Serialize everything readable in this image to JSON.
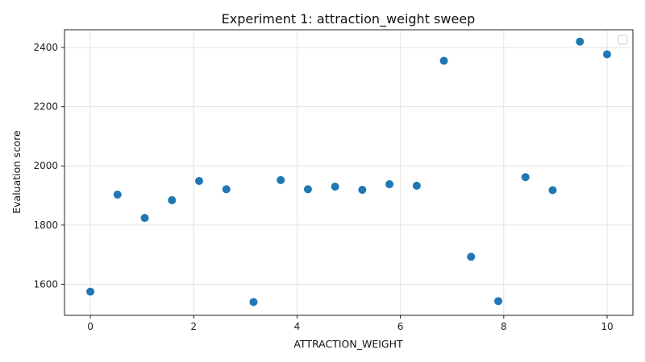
{
  "chart_data": {
    "type": "scatter",
    "title": "Experiment 1: attraction_weight sweep",
    "xlabel": "ATTRACTION_WEIGHT",
    "ylabel": "Evaluation score",
    "xlim": [
      -0.5,
      10.5
    ],
    "ylim": [
      1495,
      2460
    ],
    "xticks": [
      0,
      2,
      4,
      6,
      8,
      10
    ],
    "yticks": [
      1600,
      1800,
      2000,
      2200,
      2400
    ],
    "grid": true,
    "legend": "top-right, empty",
    "point_color": "#1f77b4",
    "series": [
      {
        "x": [
          0.0,
          0.526,
          1.053,
          1.579,
          2.105,
          2.632,
          3.158,
          3.684,
          4.211,
          4.737,
          5.263,
          5.789,
          6.316,
          6.842,
          7.368,
          7.895,
          8.421,
          8.947,
          9.474,
          10.0
        ],
        "y": [
          1575,
          1903,
          1824,
          1884,
          1949,
          1921,
          1540,
          1952,
          1921,
          1930,
          1919,
          1938,
          1933,
          2355,
          1693,
          1543,
          1962,
          1918,
          2420,
          2377
        ]
      }
    ]
  }
}
